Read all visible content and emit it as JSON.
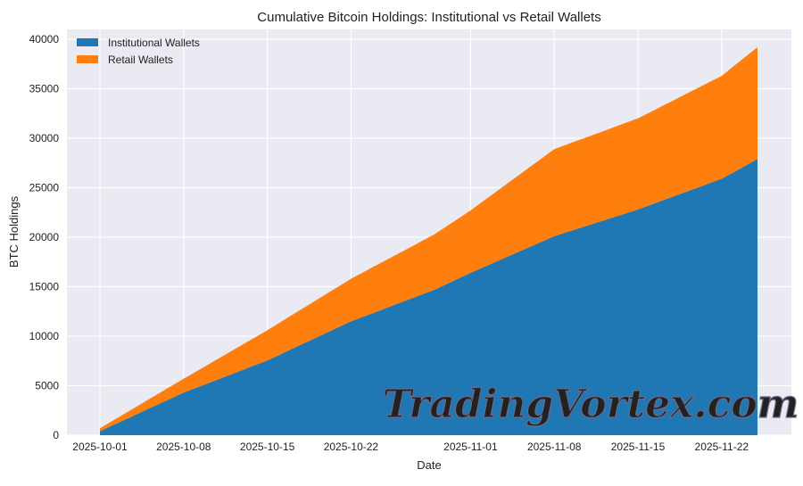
{
  "chart_data": {
    "type": "area",
    "stacked": true,
    "title": "Cumulative Bitcoin Holdings: Institutional vs Retail Wallets",
    "xlabel": "Date",
    "ylabel": "BTC Holdings",
    "ylim": [
      0,
      40000
    ],
    "yticks": [
      0,
      5000,
      10000,
      15000,
      20000,
      25000,
      30000,
      35000,
      40000
    ],
    "xticks": [
      "2025-10-01",
      "2025-10-08",
      "2025-10-15",
      "2025-10-22",
      "2025-11-01",
      "2025-11-08",
      "2025-11-15",
      "2025-11-22"
    ],
    "grid": true,
    "legend": "top-left",
    "x": [
      "2025-10-01",
      "2025-10-02",
      "2025-10-03",
      "2025-10-04",
      "2025-10-05",
      "2025-10-06",
      "2025-10-07",
      "2025-10-08",
      "2025-10-09",
      "2025-10-10",
      "2025-10-11",
      "2025-10-12",
      "2025-10-13",
      "2025-10-14",
      "2025-10-15",
      "2025-10-16",
      "2025-10-17",
      "2025-10-18",
      "2025-10-19",
      "2025-10-20",
      "2025-10-21",
      "2025-10-22",
      "2025-10-23",
      "2025-10-24",
      "2025-10-25",
      "2025-10-26",
      "2025-10-27",
      "2025-10-28",
      "2025-10-29",
      "2025-10-30",
      "2025-10-31",
      "2025-11-01",
      "2025-11-02",
      "2025-11-03",
      "2025-11-04",
      "2025-11-05",
      "2025-11-06",
      "2025-11-07",
      "2025-11-08",
      "2025-11-09",
      "2025-11-10",
      "2025-11-11",
      "2025-11-12",
      "2025-11-13",
      "2025-11-14",
      "2025-11-15",
      "2025-11-16",
      "2025-11-17",
      "2025-11-18",
      "2025-11-19",
      "2025-11-20",
      "2025-11-21",
      "2025-11-22",
      "2025-11-23",
      "2025-11-24",
      "2025-11-25"
    ],
    "series": [
      {
        "name": "Institutional Wallets",
        "color": "#1f77b4",
        "values": [
          400,
          960,
          1510,
          2070,
          2630,
          3190,
          3740,
          4300,
          4760,
          5230,
          5690,
          6160,
          6620,
          7090,
          7550,
          8110,
          8680,
          9240,
          9810,
          10370,
          10940,
          11500,
          11960,
          12410,
          12870,
          13330,
          13790,
          14240,
          14700,
          15270,
          15830,
          16400,
          16930,
          17460,
          17990,
          18510,
          19040,
          19570,
          20100,
          20490,
          20870,
          21260,
          21640,
          22030,
          22410,
          22800,
          23240,
          23690,
          24130,
          24570,
          25010,
          25460,
          25900,
          26570,
          27230,
          27900
        ]
      },
      {
        "name": "Retail Wallets",
        "color": "#ff7f0e",
        "values": [
          300,
          450,
          620,
          770,
          930,
          1080,
          1250,
          1400,
          1640,
          1870,
          2110,
          2340,
          2580,
          2810,
          3050,
          3230,
          3410,
          3590,
          3760,
          3940,
          4120,
          4300,
          4480,
          4680,
          4860,
          5040,
          5220,
          5420,
          5600,
          5830,
          6070,
          6300,
          6660,
          7010,
          7370,
          7730,
          8090,
          8440,
          8800,
          8850,
          8920,
          8970,
          9030,
          9080,
          9150,
          9200,
          9370,
          9540,
          9710,
          9890,
          10060,
          10230,
          10400,
          10700,
          11000,
          11300
        ]
      }
    ]
  },
  "watermark": "TradingVortex.com"
}
